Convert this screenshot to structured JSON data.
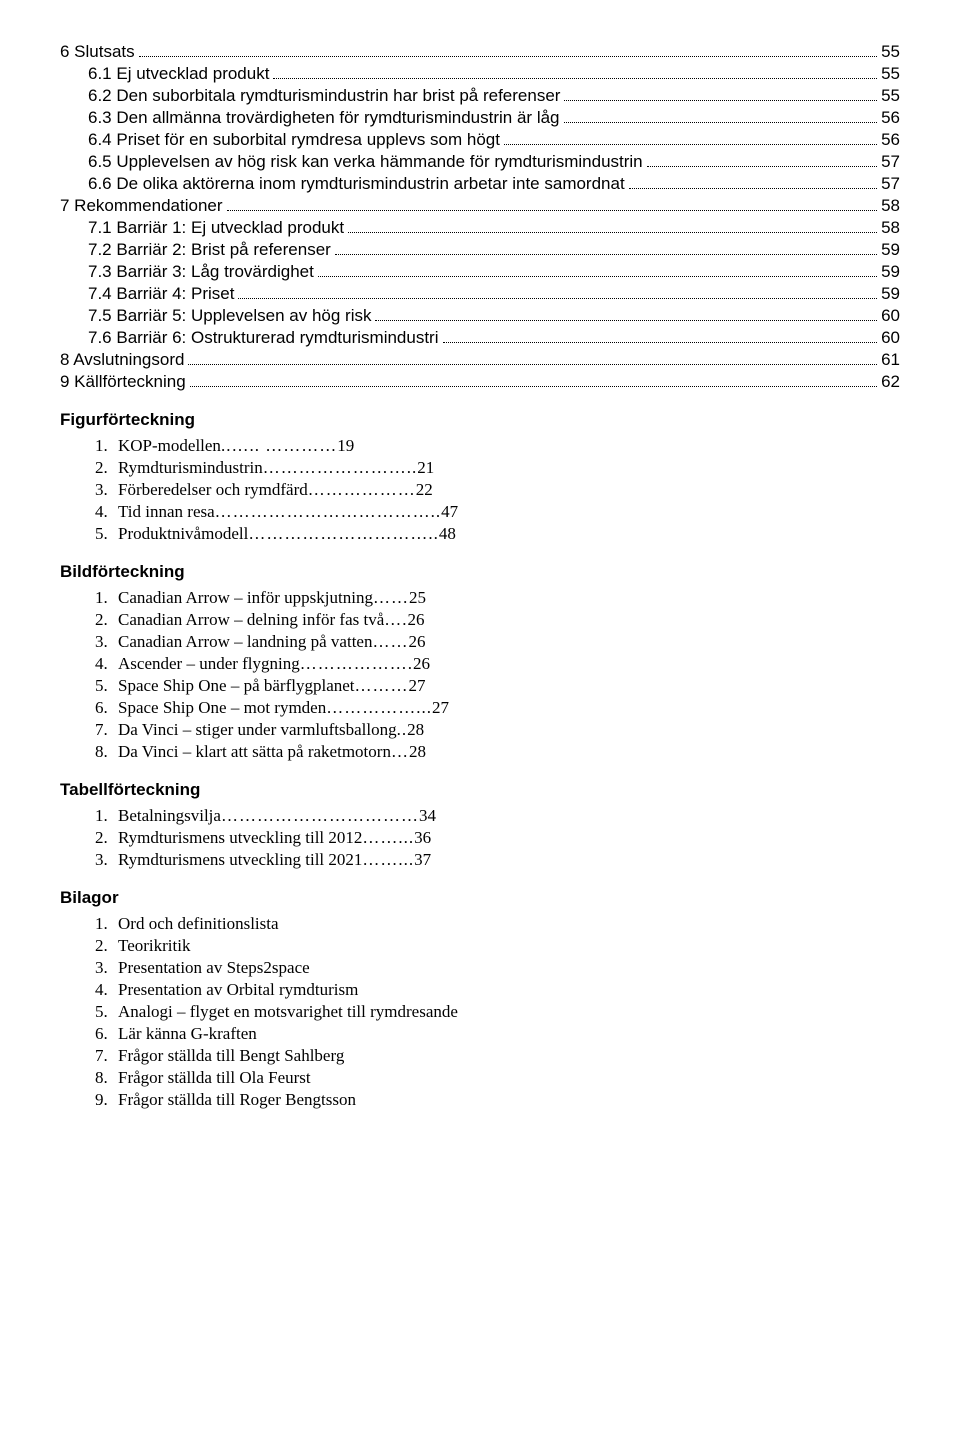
{
  "toc": [
    {
      "level": 0,
      "label": "6 Slutsats",
      "page": "55"
    },
    {
      "level": 1,
      "label": "6.1 Ej utvecklad produkt",
      "page": "55"
    },
    {
      "level": 1,
      "label": "6.2 Den suborbitala rymdturismindustrin har brist på referenser",
      "page": "55"
    },
    {
      "level": 1,
      "label": "6.3 Den allmänna trovärdigheten för rymdturismindustrin är låg",
      "page": "56"
    },
    {
      "level": 1,
      "label": "6.4 Priset för en suborbital rymdresa upplevs som högt",
      "page": "56"
    },
    {
      "level": 1,
      "label": "6.5 Upplevelsen av hög risk kan verka hämmande för rymdturismindustrin",
      "page": "57"
    },
    {
      "level": 1,
      "label": "6.6 De olika aktörerna inom rymdturismindustrin arbetar inte samordnat",
      "page": "57"
    },
    {
      "level": 0,
      "label": "7 Rekommendationer",
      "page": "58"
    },
    {
      "level": 1,
      "label": "7.1 Barriär 1: Ej utvecklad produkt",
      "page": "58"
    },
    {
      "level": 1,
      "label": "7.2 Barriär 2: Brist på referenser",
      "page": "59"
    },
    {
      "level": 1,
      "label": "7.3 Barriär 3: Låg trovärdighet",
      "page": "59"
    },
    {
      "level": 1,
      "label": "7.4 Barriär 4: Priset",
      "page": "59"
    },
    {
      "level": 1,
      "label": "7.5 Barriär 5: Upplevelsen av hög risk",
      "page": "60"
    },
    {
      "level": 1,
      "label": "7.6 Barriär 6: Ostrukturerad rymdturismindustri",
      "page": "60"
    },
    {
      "level": 0,
      "label": "8 Avslutningsord",
      "page": "61"
    },
    {
      "level": 0,
      "label": "9 Källförteckning",
      "page": "62"
    }
  ],
  "lists": [
    {
      "heading": "Figurförteckning",
      "items": [
        {
          "text": "KOP-modellen",
          "fill": "..….. …………",
          "page": "19"
        },
        {
          "text": "Rymdturismindustrin",
          "fill": "……………………..",
          "page": " 21"
        },
        {
          "text": "Förberedelser och rymdfärd",
          "fill": "………………",
          "page": "22"
        },
        {
          "text": "Tid innan resa",
          "fill": "………………………………..",
          "page": "47"
        },
        {
          "text": "Produktnivåmodell",
          "fill": "…………………………..",
          "page": "48"
        }
      ]
    },
    {
      "heading": "Bildförteckning",
      "items": [
        {
          "text": "Canadian Arrow – inför uppskjutning",
          "fill": "……",
          "page": "25"
        },
        {
          "text": "Canadian Arrow – delning inför fas två",
          "fill": "….",
          "page": "26"
        },
        {
          "text": "Canadian Arrow – landning på vatten",
          "fill": "……",
          "page": "26"
        },
        {
          "text": "Ascender – under flygning",
          "fill": "……………….",
          "page": "26"
        },
        {
          "text": "Space Ship One – på bärflygplanet",
          "fill": "………",
          "page": "27"
        },
        {
          "text": "Space Ship One – mot rymden",
          "fill": "……………...",
          "page": "27"
        },
        {
          "text": "Da Vinci – stiger under varmluftsballong",
          "fill": "..",
          "page": "28"
        },
        {
          "text": "Da Vinci – klart att sätta på raketmotorn",
          "fill": "…",
          "page": "28"
        }
      ]
    },
    {
      "heading": "Tabellförteckning",
      "items": [
        {
          "text": "Betalningsvilja",
          "fill": "……………………………",
          "page": "34"
        },
        {
          "text": "Rymdturismens utveckling till 2012",
          "fill": "……...",
          "page": "36"
        },
        {
          "text": "Rymdturismens utveckling till 2021",
          "fill": "……...",
          "page": "37"
        }
      ]
    },
    {
      "heading": "Bilagor",
      "items": [
        {
          "text": "Ord och definitionslista",
          "fill": "",
          "page": ""
        },
        {
          "text": "Teorikritik",
          "fill": "",
          "page": ""
        },
        {
          "text": "Presentation av Steps2space",
          "fill": "",
          "page": ""
        },
        {
          "text": "Presentation av Orbital rymdturism",
          "fill": "",
          "page": ""
        },
        {
          "text": "Analogi – flyget en motsvarighet till rymdresande",
          "fill": "",
          "page": ""
        },
        {
          "text": "Lär känna G-kraften",
          "fill": "",
          "page": ""
        },
        {
          "text": "Frågor ställda till Bengt Sahlberg",
          "fill": "",
          "page": ""
        },
        {
          "text": "Frågor ställda till Ola Feurst",
          "fill": "",
          "page": ""
        },
        {
          "text": "Frågor ställda till Roger Bengtsson",
          "fill": "",
          "page": ""
        }
      ]
    }
  ]
}
